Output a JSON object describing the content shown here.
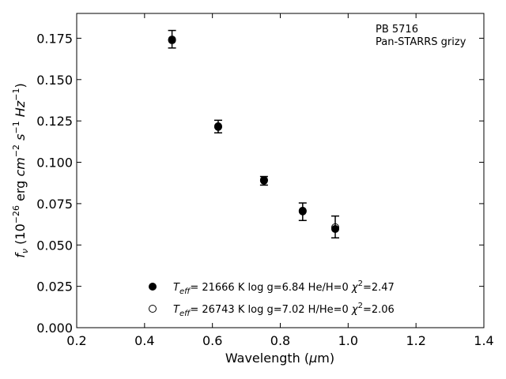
{
  "chart_data": {
    "type": "scatter",
    "xlabel": "Wavelength (μm)",
    "ylabel": "f_ν (10^-26 erg cm^-2 s^-1 Hz^-1)",
    "xlim": [
      0.2,
      1.4
    ],
    "ylim": [
      0.0,
      0.19
    ],
    "x_ticks": [
      "0.2",
      "0.4",
      "0.6",
      "0.8",
      "1.0",
      "1.2",
      "1.4"
    ],
    "y_ticks": [
      "0.000",
      "0.025",
      "0.050",
      "0.075",
      "0.100",
      "0.125",
      "0.150",
      "0.175"
    ],
    "grid": false,
    "annotation": [
      "PB 5716",
      "Pan-STARRS grizy"
    ],
    "legend_position": "lower-center",
    "series": [
      {
        "name": "T_eff= 21666 K  log g=6.84  He/H=0  χ²=2.47",
        "marker": "filled-circle",
        "x": [
          0.481,
          0.617,
          0.752,
          0.866,
          0.962
        ],
        "y": [
          0.1738,
          0.1214,
          0.0889,
          0.0703,
          0.0597
        ]
      },
      {
        "name": "T_eff= 26743 K  log g=7.02  H/He=0  χ²=2.06",
        "marker": "open-circle",
        "x": [
          0.481,
          0.617,
          0.752,
          0.866,
          0.962
        ],
        "y": [
          0.1742,
          0.1218,
          0.0893,
          0.0707,
          0.0607
        ]
      }
    ],
    "observed": {
      "x": [
        0.481,
        0.617,
        0.752,
        0.866,
        0.962
      ],
      "y": [
        0.1744,
        0.1216,
        0.0888,
        0.0701,
        0.0609
      ],
      "err": [
        0.0053,
        0.0038,
        0.0026,
        0.0053,
        0.0066
      ]
    }
  }
}
